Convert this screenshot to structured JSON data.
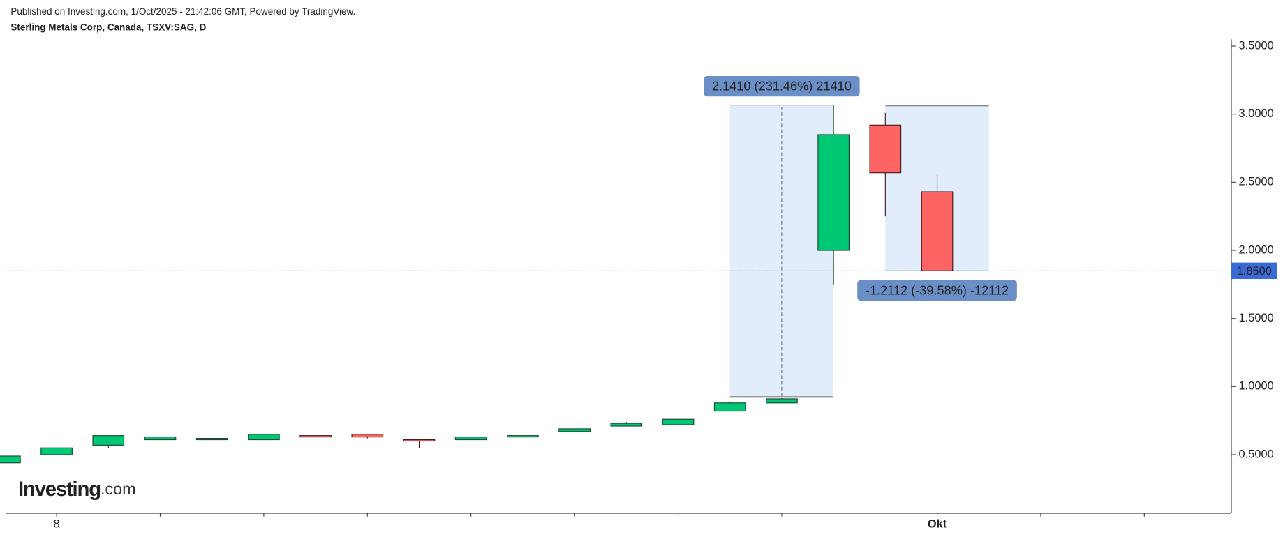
{
  "chart_data": {
    "type": "candlestick",
    "subtitle": "Published on Investing.com, 1/Oct/2025 - 21:42:06 GMT, Powered by TradingView.",
    "title": "Sterling Metals Corp, Canada, TSXV:SAG, D",
    "categories": [
      null,
      "8",
      null,
      null,
      null,
      null,
      null,
      null,
      null,
      null,
      null,
      null,
      null,
      null,
      null,
      null,
      null,
      null,
      "Okt",
      null,
      null,
      null,
      null
    ],
    "open": [
      0.44,
      0.5,
      0.57,
      0.61,
      0.61,
      0.61,
      0.64,
      0.65,
      0.61,
      0.61,
      0.63,
      0.67,
      0.71,
      0.72,
      0.82,
      0.88,
      2.0,
      2.92,
      2.43,
      null,
      null,
      null,
      null
    ],
    "high": [
      0.49,
      0.55,
      0.64,
      0.63,
      0.62,
      0.65,
      0.64,
      0.65,
      0.61,
      0.63,
      0.64,
      0.69,
      0.74,
      0.76,
      0.89,
      0.92,
      3.07,
      3.01,
      2.56,
      null,
      null,
      null,
      null
    ],
    "low": [
      0.44,
      0.5,
      0.55,
      0.61,
      0.61,
      0.61,
      0.63,
      0.62,
      0.55,
      0.61,
      0.63,
      0.67,
      0.71,
      0.72,
      0.82,
      0.88,
      1.75,
      2.25,
      1.85,
      null,
      null,
      null,
      null
    ],
    "close": [
      0.49,
      0.55,
      0.64,
      0.63,
      0.62,
      0.65,
      0.63,
      0.63,
      0.6,
      0.63,
      0.64,
      0.69,
      0.73,
      0.76,
      0.88,
      0.91,
      2.85,
      2.57,
      1.85,
      null,
      null,
      null,
      null
    ],
    "xticks": [
      1,
      3,
      5,
      7,
      9,
      11,
      13,
      15,
      18,
      20,
      22
    ],
    "xlim": [
      0.02,
      23.68
    ],
    "ylim": [
      0.07,
      3.55
    ],
    "yticks": [
      {
        "value": 0.5,
        "label": "0.5000"
      },
      {
        "value": 1,
        "label": "1.0000"
      },
      {
        "value": 1.5,
        "label": "1.5000"
      },
      {
        "value": 2,
        "label": "2.0000"
      },
      {
        "value": 2.5,
        "label": "2.5000"
      },
      {
        "value": 3,
        "label": "3.0000"
      },
      {
        "value": 3.5,
        "label": "3.5000"
      }
    ],
    "up_color": "#00c774",
    "down_color": "#ff6464",
    "last_price": {
      "value": 1.85,
      "label": "1.8500"
    },
    "annotations": [
      {
        "text": "2.1410 (231.46%) 21410",
        "range": [
          0.926,
          3.067
        ],
        "span": [
          14,
          16
        ],
        "label_side": "top"
      },
      {
        "text": "-1.2112 (-39.58%) -12112",
        "range": [
          1.85,
          3.061
        ],
        "span": [
          17,
          19
        ],
        "label_side": "bottom"
      }
    ],
    "watermark": {
      "name": "Investing",
      "suffix": ".com"
    }
  }
}
